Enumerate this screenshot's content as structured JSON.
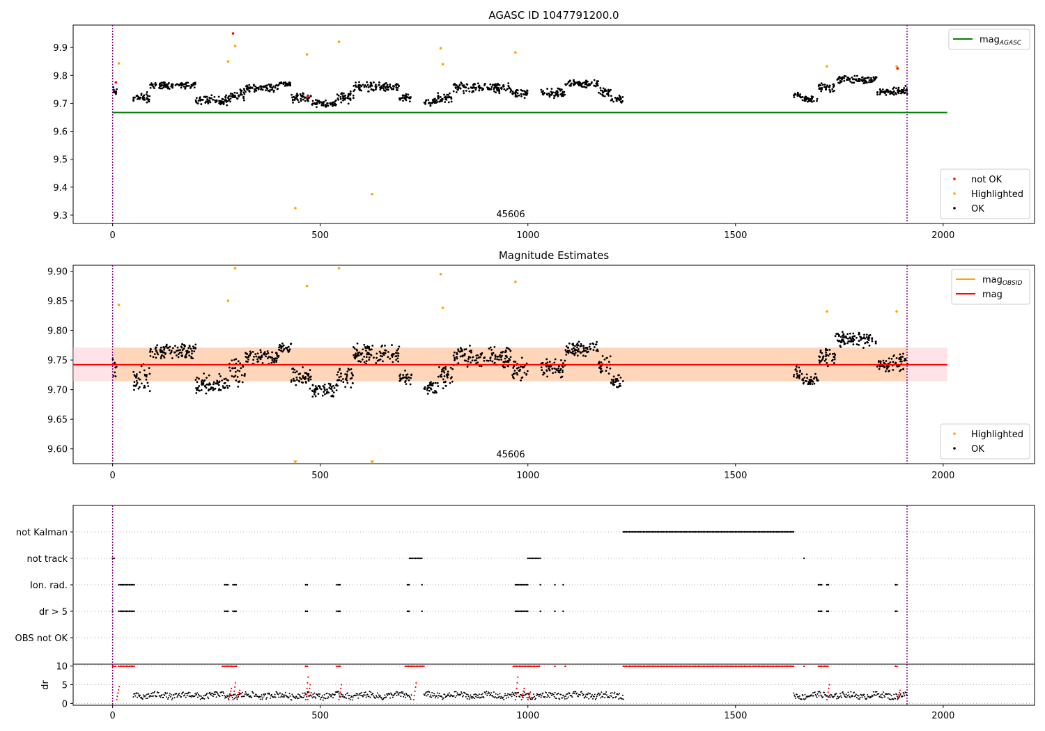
{
  "chart_data": [
    {
      "type": "scatter",
      "title": "AGASC ID 1047791200.0",
      "annotation": "45606",
      "xlim": [
        -95,
        2220
      ],
      "ylim": [
        9.27,
        9.98
      ],
      "xticks": [
        0,
        500,
        1000,
        1500,
        2000
      ],
      "yticks": [
        9.3,
        9.4,
        9.5,
        9.6,
        9.7,
        9.8,
        9.9
      ],
      "ytick_labels": [
        "9.3",
        "9.4",
        "9.5",
        "9.6",
        "9.7",
        "9.8",
        "9.9"
      ],
      "vlines_x": [
        0,
        1913
      ],
      "hline": {
        "name": "mag_AGASC",
        "y": 9.667,
        "x_range": [
          0,
          2010
        ],
        "color": "#008000"
      },
      "segments": [
        {
          "x": [
            0,
            10
          ],
          "center": 9.74,
          "amp": 0.03
        },
        {
          "x": [
            50,
            90
          ],
          "center": 9.72,
          "amp": 0.025
        },
        {
          "x": [
            90,
            200
          ],
          "center": 9.765,
          "amp": 0.015
        },
        {
          "x": [
            200,
            280
          ],
          "center": 9.71,
          "amp": 0.02
        },
        {
          "x": [
            280,
            320
          ],
          "center": 9.73,
          "amp": 0.03
        },
        {
          "x": [
            320,
            400
          ],
          "center": 9.755,
          "amp": 0.015
        },
        {
          "x": [
            400,
            430
          ],
          "center": 9.77,
          "amp": 0.01
        },
        {
          "x": [
            430,
            480
          ],
          "center": 9.72,
          "amp": 0.02
        },
        {
          "x": [
            480,
            540
          ],
          "center": 9.7,
          "amp": 0.015
        },
        {
          "x": [
            540,
            580
          ],
          "center": 9.72,
          "amp": 0.025
        },
        {
          "x": [
            580,
            690
          ],
          "center": 9.76,
          "amp": 0.02
        },
        {
          "x": [
            690,
            720
          ],
          "center": 9.72,
          "amp": 0.015
        },
        {
          "x": [
            750,
            780
          ],
          "center": 9.705,
          "amp": 0.015
        },
        {
          "x": [
            780,
            820
          ],
          "center": 9.72,
          "amp": 0.02
        },
        {
          "x": [
            820,
            960
          ],
          "center": 9.755,
          "amp": 0.02
        },
        {
          "x": [
            960,
            1000
          ],
          "center": 9.735,
          "amp": 0.02
        },
        {
          "x": [
            1030,
            1090
          ],
          "center": 9.735,
          "amp": 0.02
        },
        {
          "x": [
            1090,
            1170
          ],
          "center": 9.77,
          "amp": 0.015
        },
        {
          "x": [
            1170,
            1200
          ],
          "center": 9.74,
          "amp": 0.02
        },
        {
          "x": [
            1200,
            1230
          ],
          "center": 9.715,
          "amp": 0.015
        },
        {
          "x": [
            1640,
            1660
          ],
          "center": 9.73,
          "amp": 0.015
        },
        {
          "x": [
            1660,
            1700
          ],
          "center": 9.715,
          "amp": 0.012
        },
        {
          "x": [
            1700,
            1740
          ],
          "center": 9.755,
          "amp": 0.02
        },
        {
          "x": [
            1740,
            1840
          ],
          "center": 9.785,
          "amp": 0.015
        },
        {
          "x": [
            1840,
            1880
          ],
          "center": 9.74,
          "amp": 0.015
        },
        {
          "x": [
            1880,
            1915
          ],
          "center": 9.745,
          "amp": 0.02
        }
      ],
      "not_ok": {
        "x": [
          8,
          290,
          470,
          1890
        ],
        "y": [
          9.775,
          9.95,
          9.725,
          9.825
        ],
        "color": "#ff0000"
      },
      "highlighted": {
        "x": [
          15,
          278,
          295,
          440,
          468,
          545,
          625,
          790,
          795,
          970,
          1720,
          1888
        ],
        "y": [
          9.843,
          9.85,
          9.905,
          9.325,
          9.875,
          9.92,
          9.375,
          9.897,
          9.84,
          9.882,
          9.832,
          9.832
        ],
        "color": "#ffa500"
      },
      "legends": [
        {
          "position": "top-right",
          "entries": [
            {
              "label": "mag",
              "sub": "AGASC",
              "marker": "line",
              "color": "#008000"
            }
          ]
        },
        {
          "position": "bottom-right",
          "entries": [
            {
              "label": "not OK",
              "marker": "dot",
              "color": "#ff0000"
            },
            {
              "label": "Highlighted",
              "marker": "dot",
              "color": "#ffa500"
            },
            {
              "label": "OK",
              "marker": "dot",
              "color": "#000000"
            }
          ]
        }
      ]
    },
    {
      "type": "scatter",
      "title": "Magnitude Estimates",
      "annotation": "45606",
      "xlim": [
        -95,
        2220
      ],
      "ylim": [
        9.575,
        9.91
      ],
      "xticks": [
        0,
        500,
        1000,
        1500,
        2000
      ],
      "yticks": [
        9.6,
        9.65,
        9.7,
        9.75,
        9.8,
        9.85,
        9.9
      ],
      "ytick_labels": [
        "9.60",
        "9.65",
        "9.70",
        "9.75",
        "9.80",
        "9.85",
        "9.90"
      ],
      "vlines_x": [
        0,
        1913
      ],
      "mag_line": {
        "name": "mag",
        "y": 9.742,
        "x_range": [
          -95,
          2010
        ],
        "color": "#ff0000"
      },
      "mag_band": {
        "y": [
          9.714,
          9.771
        ],
        "x_range": [
          -95,
          2010
        ],
        "color": "#ffc0cb"
      },
      "mag_obsid": {
        "name": "mag_OBSID",
        "y": 9.743,
        "x_range": [
          0,
          1913
        ],
        "color": "#ffa500"
      },
      "highlighted": {
        "x": [
          15,
          278,
          295,
          468,
          545,
          790,
          795,
          970,
          1720,
          1888
        ],
        "y": [
          9.843,
          9.85,
          9.905,
          9.875,
          9.905,
          9.895,
          9.838,
          9.882,
          9.832,
          9.832
        ],
        "color": "#ffa500"
      },
      "offscale_markers": {
        "x": [
          440,
          625
        ],
        "y": [
          9.578,
          9.578
        ],
        "color": "#ffa500"
      },
      "legends": [
        {
          "position": "top-right",
          "entries": [
            {
              "label": "mag",
              "sub": "OBSID",
              "marker": "line",
              "color": "#ffa500"
            },
            {
              "label": "mag",
              "marker": "line",
              "color": "#ff0000"
            }
          ]
        },
        {
          "position": "bottom-right",
          "entries": [
            {
              "label": "Highlighted",
              "marker": "dot",
              "color": "#ffa500"
            },
            {
              "label": "OK",
              "marker": "dot",
              "color": "#000000"
            }
          ]
        }
      ]
    },
    {
      "type": "scatter",
      "xlim": [
        -95,
        2220
      ],
      "categories": [
        "not Kalman",
        "not track",
        "Ion. rad.",
        "dr > 5",
        "OBS not OK"
      ],
      "vlines_x": [
        0,
        1913
      ],
      "flag_ranges": {
        "not Kalman": [
          [
            1230,
            1640
          ]
        ],
        "not track": [
          [
            0,
            5
          ],
          [
            715,
            745
          ],
          [
            1000,
            1030
          ],
          [
            1665,
            1666
          ]
        ],
        "Ion. rad.": [
          [
            15,
            55
          ],
          [
            270,
            280
          ],
          [
            290,
            300
          ],
          [
            465,
            470
          ],
          [
            540,
            550
          ],
          [
            710,
            715
          ],
          [
            745,
            746
          ],
          [
            970,
            1000
          ],
          [
            1030,
            1031
          ],
          [
            1065,
            1066
          ],
          [
            1085,
            1086
          ],
          [
            1700,
            1710
          ],
          [
            1720,
            1725
          ],
          [
            1885,
            1890
          ]
        ],
        "dr > 5": [
          [
            0,
            2
          ],
          [
            15,
            55
          ],
          [
            270,
            280
          ],
          [
            290,
            300
          ],
          [
            465,
            470
          ],
          [
            540,
            550
          ],
          [
            710,
            715
          ],
          [
            745,
            746
          ],
          [
            970,
            1000
          ],
          [
            1030,
            1031
          ],
          [
            1065,
            1066
          ],
          [
            1085,
            1086
          ],
          [
            1700,
            1710
          ],
          [
            1720,
            1725
          ],
          [
            1885,
            1890
          ]
        ],
        "OBS not OK": []
      }
    },
    {
      "type": "scatter",
      "ylabel": "dr",
      "xlim": [
        -95,
        2220
      ],
      "ylim": [
        -0.5,
        10.5
      ],
      "xticks": [
        0,
        500,
        1000,
        1500,
        2000
      ],
      "yticks": [
        0,
        5,
        10
      ],
      "ytick_labels": [
        "0",
        "5",
        "10"
      ],
      "vlines_x": [
        0,
        1913
      ],
      "capped_ranges": [
        [
          0,
          10
        ],
        [
          15,
          55
        ],
        [
          265,
          300
        ],
        [
          465,
          470
        ],
        [
          540,
          550
        ],
        [
          705,
          750
        ],
        [
          965,
          1030
        ],
        [
          1065,
          1066
        ],
        [
          1090,
          1091
        ],
        [
          1230,
          1640
        ],
        [
          1665,
          1666
        ],
        [
          1700,
          1725
        ],
        [
          1885,
          1890
        ]
      ],
      "normal_ranges": [
        [
          50,
          250
        ],
        [
          250,
          470
        ],
        [
          470,
          720
        ],
        [
          750,
          1230
        ],
        [
          1640,
          1915
        ]
      ],
      "red_peaks": {
        "x": [
          10,
          280,
          290,
          300,
          465,
          470,
          545,
          725,
          970,
          985,
          1000,
          1720,
          1890
        ],
        "y": [
          4.5,
          4.0,
          5.5,
          3.5,
          7.0,
          5.0,
          5.0,
          5.5,
          7.0,
          4.0,
          3.0,
          5.0,
          3.5
        ],
        "color": "#ff0000"
      }
    }
  ]
}
